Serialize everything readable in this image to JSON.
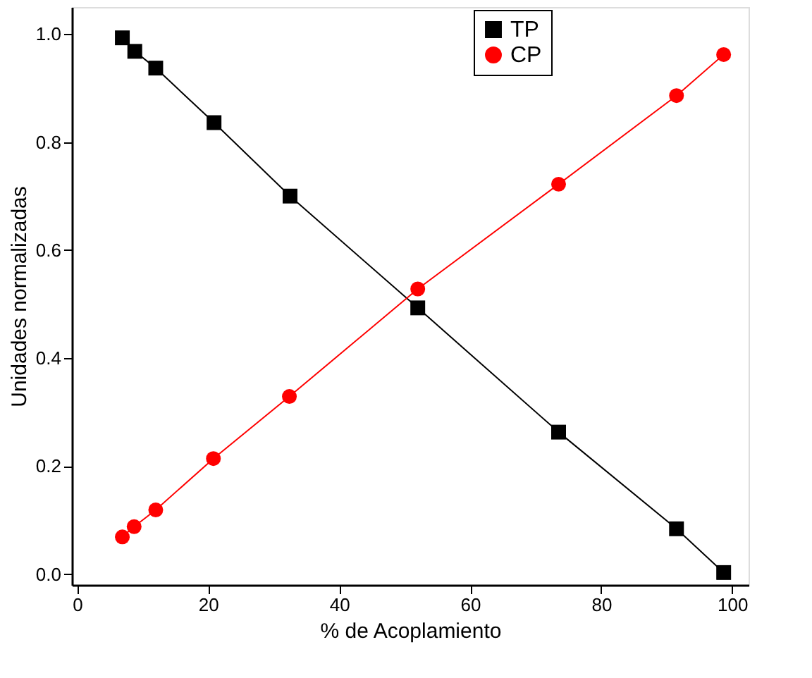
{
  "chart_data": {
    "type": "line",
    "xlabel": "% de Acoplamiento",
    "ylabel": "Unidades normalizadas",
    "xlim": [
      -0.8,
      102.5
    ],
    "ylim": [
      -0.02,
      1.05
    ],
    "xticks": [
      0,
      20,
      40,
      60,
      80,
      100
    ],
    "yticks": [
      {
        "value": 0,
        "label": "0.0"
      },
      {
        "value": 0.2,
        "label": "0.2"
      },
      {
        "value": 0.4,
        "label": "0.4"
      },
      {
        "value": 0.6,
        "label": "0.6"
      },
      {
        "value": 0.8,
        "label": "0.8"
      },
      {
        "value": 1,
        "label": "1.0"
      }
    ],
    "grid": false,
    "legend": "top right",
    "series": [
      {
        "name": "TP",
        "color": "#000000",
        "marker": "square",
        "line_style": "solid",
        "x": [
          6.9,
          8.8,
          12.0,
          20.9,
          32.5,
          52.0,
          73.5,
          91.5,
          98.7
        ],
        "values": [
          0.993,
          0.968,
          0.937,
          0.836,
          0.7,
          0.493,
          0.263,
          0.084,
          0.003
        ]
      },
      {
        "name": "CP",
        "color": "#ff0000",
        "marker": "circle",
        "line_style": "solid",
        "x": [
          6.9,
          8.7,
          12.0,
          20.8,
          32.4,
          52.0,
          73.5,
          91.5,
          98.7
        ],
        "values": [
          0.069,
          0.088,
          0.119,
          0.214,
          0.329,
          0.528,
          0.722,
          0.886,
          0.962
        ]
      }
    ]
  }
}
